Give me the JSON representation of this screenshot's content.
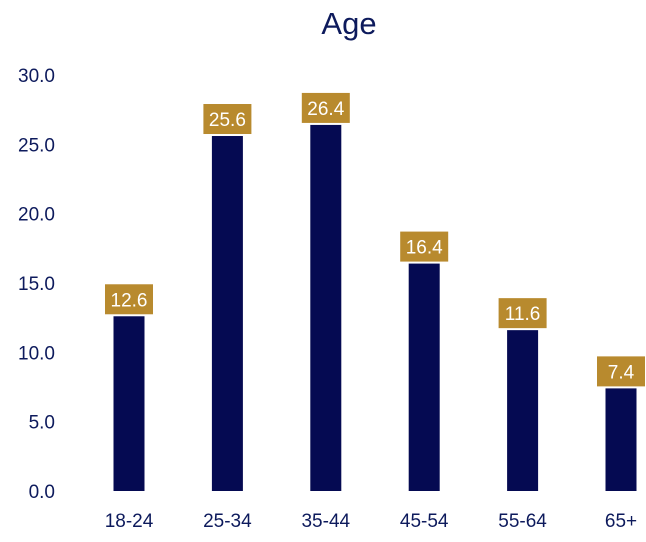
{
  "chart_data": {
    "type": "bar",
    "title": "Age",
    "xlabel": "",
    "ylabel": "",
    "categories": [
      "18-24",
      "25-34",
      "35-44",
      "45-54",
      "55-64",
      "65+"
    ],
    "values": [
      12.6,
      25.6,
      26.4,
      16.4,
      11.6,
      7.4
    ],
    "value_labels": [
      "12.6",
      "25.6",
      "26.4",
      "16.4",
      "11.6",
      "7.4"
    ],
    "ylim": [
      0,
      30
    ],
    "yticks": [
      "0.0",
      "5.0",
      "10.0",
      "15.0",
      "20.0",
      "25.0",
      "30.0"
    ],
    "grid": false,
    "legend": "none",
    "colors": {
      "bar": "#050a52",
      "label_bg": "#b88a2e",
      "label_text": "#ffffff",
      "axis_text": "#0d1a5c",
      "title_text": "#0d1a5c"
    }
  }
}
